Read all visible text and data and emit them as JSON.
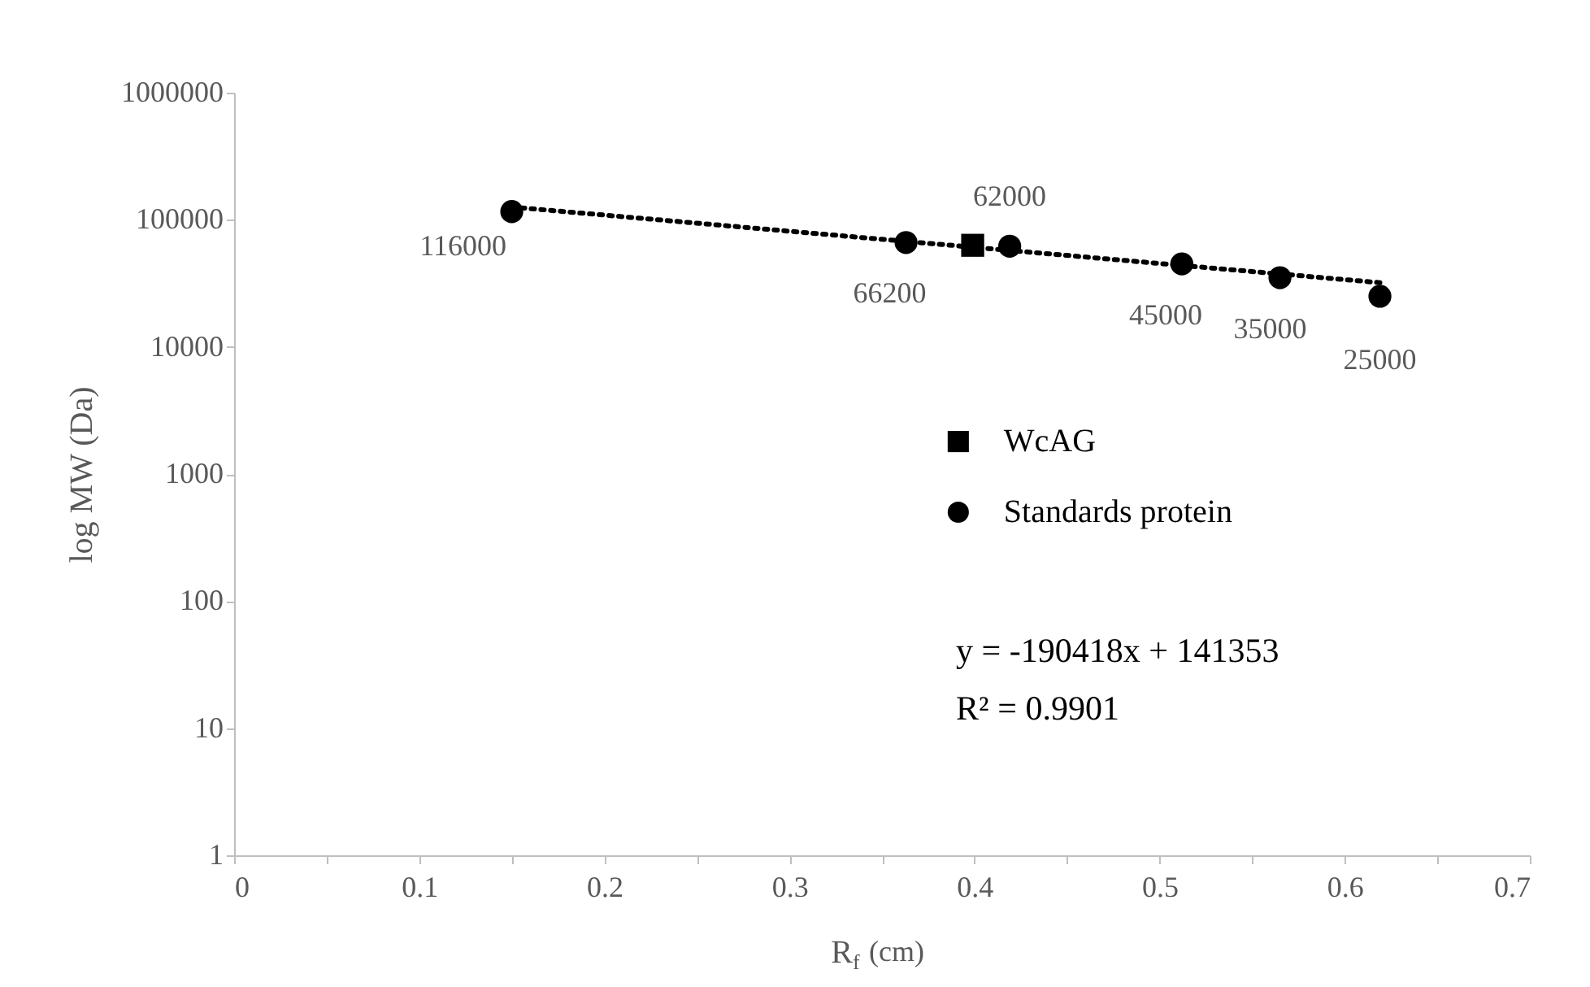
{
  "chart_data": {
    "type": "scatter",
    "xlabel": "R$_{f}$ (cm)",
    "ylabel": "log MW (Da)",
    "log": "y",
    "grid": false,
    "legend": "right",
    "xlim": [
      0,
      0.7
    ],
    "ylim": [
      1,
      1000000
    ],
    "xticks": [
      0,
      {
        "value": 0.05,
        "label": null
      },
      0.1,
      {
        "value": 0.15,
        "label": null
      },
      0.2,
      {
        "value": 0.25,
        "label": null
      },
      0.3,
      {
        "value": 0.35,
        "label": null
      },
      0.4,
      {
        "value": 0.45,
        "label": null
      },
      0.5,
      {
        "value": 0.55,
        "label": null
      },
      0.6,
      {
        "value": 0.65,
        "label": null
      },
      0.7
    ],
    "yticks": [
      1,
      10,
      100,
      1000,
      10000,
      100000,
      1000000
    ],
    "series": [
      {
        "name": "WcAG",
        "color": "#000000",
        "marker": "square",
        "x": [
          0.399
        ],
        "values": [
          63000
        ]
      },
      {
        "name": "Standards protein",
        "color": "#000000",
        "marker": "circle",
        "x": [
          0.15,
          0.363,
          0.419,
          0.512,
          0.565,
          0.619
        ],
        "values": [
          116000,
          66200,
          62000,
          45000,
          35000,
          25000
        ],
        "data_labels": true
      },
      {
        "type": "line",
        "color": "#000000",
        "line_style": "dotted",
        "marker": "none",
        "x": [
          0.15,
          0.619
        ],
        "values": [
          126000,
          32000
        ]
      }
    ],
    "annotations": [
      "y = -190418x + 141353",
      "R² = 0.9901"
    ]
  }
}
